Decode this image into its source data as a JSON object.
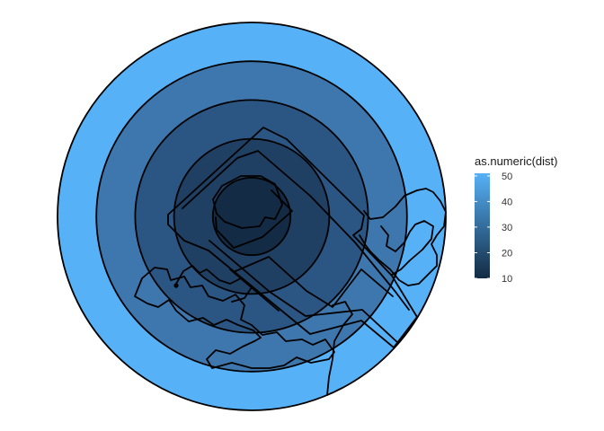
{
  "chart_data": {
    "type": "map",
    "subtype": "buffer-rings",
    "title": "",
    "xlabel": "",
    "ylabel": "",
    "fill_variable": "as.numeric(dist)",
    "rings": [
      {
        "dist": 10,
        "color": "#142b45"
      },
      {
        "dist": 20,
        "color": "#1f3f63"
      },
      {
        "dist": 30,
        "color": "#2b5582"
      },
      {
        "dist": 40,
        "color": "#3d77ad"
      },
      {
        "dist": 50,
        "color": "#56b1f7"
      }
    ],
    "legend": {
      "title": "as.numeric(dist)",
      "position": "right",
      "breaks": [
        10,
        20,
        30,
        40,
        50
      ],
      "tick_labels": [
        "10",
        "20",
        "30",
        "40",
        "50"
      ],
      "low_color": "#132b43",
      "high_color": "#56b1f7",
      "range": [
        10,
        51
      ]
    },
    "background": "#ffffff",
    "grid": false
  }
}
